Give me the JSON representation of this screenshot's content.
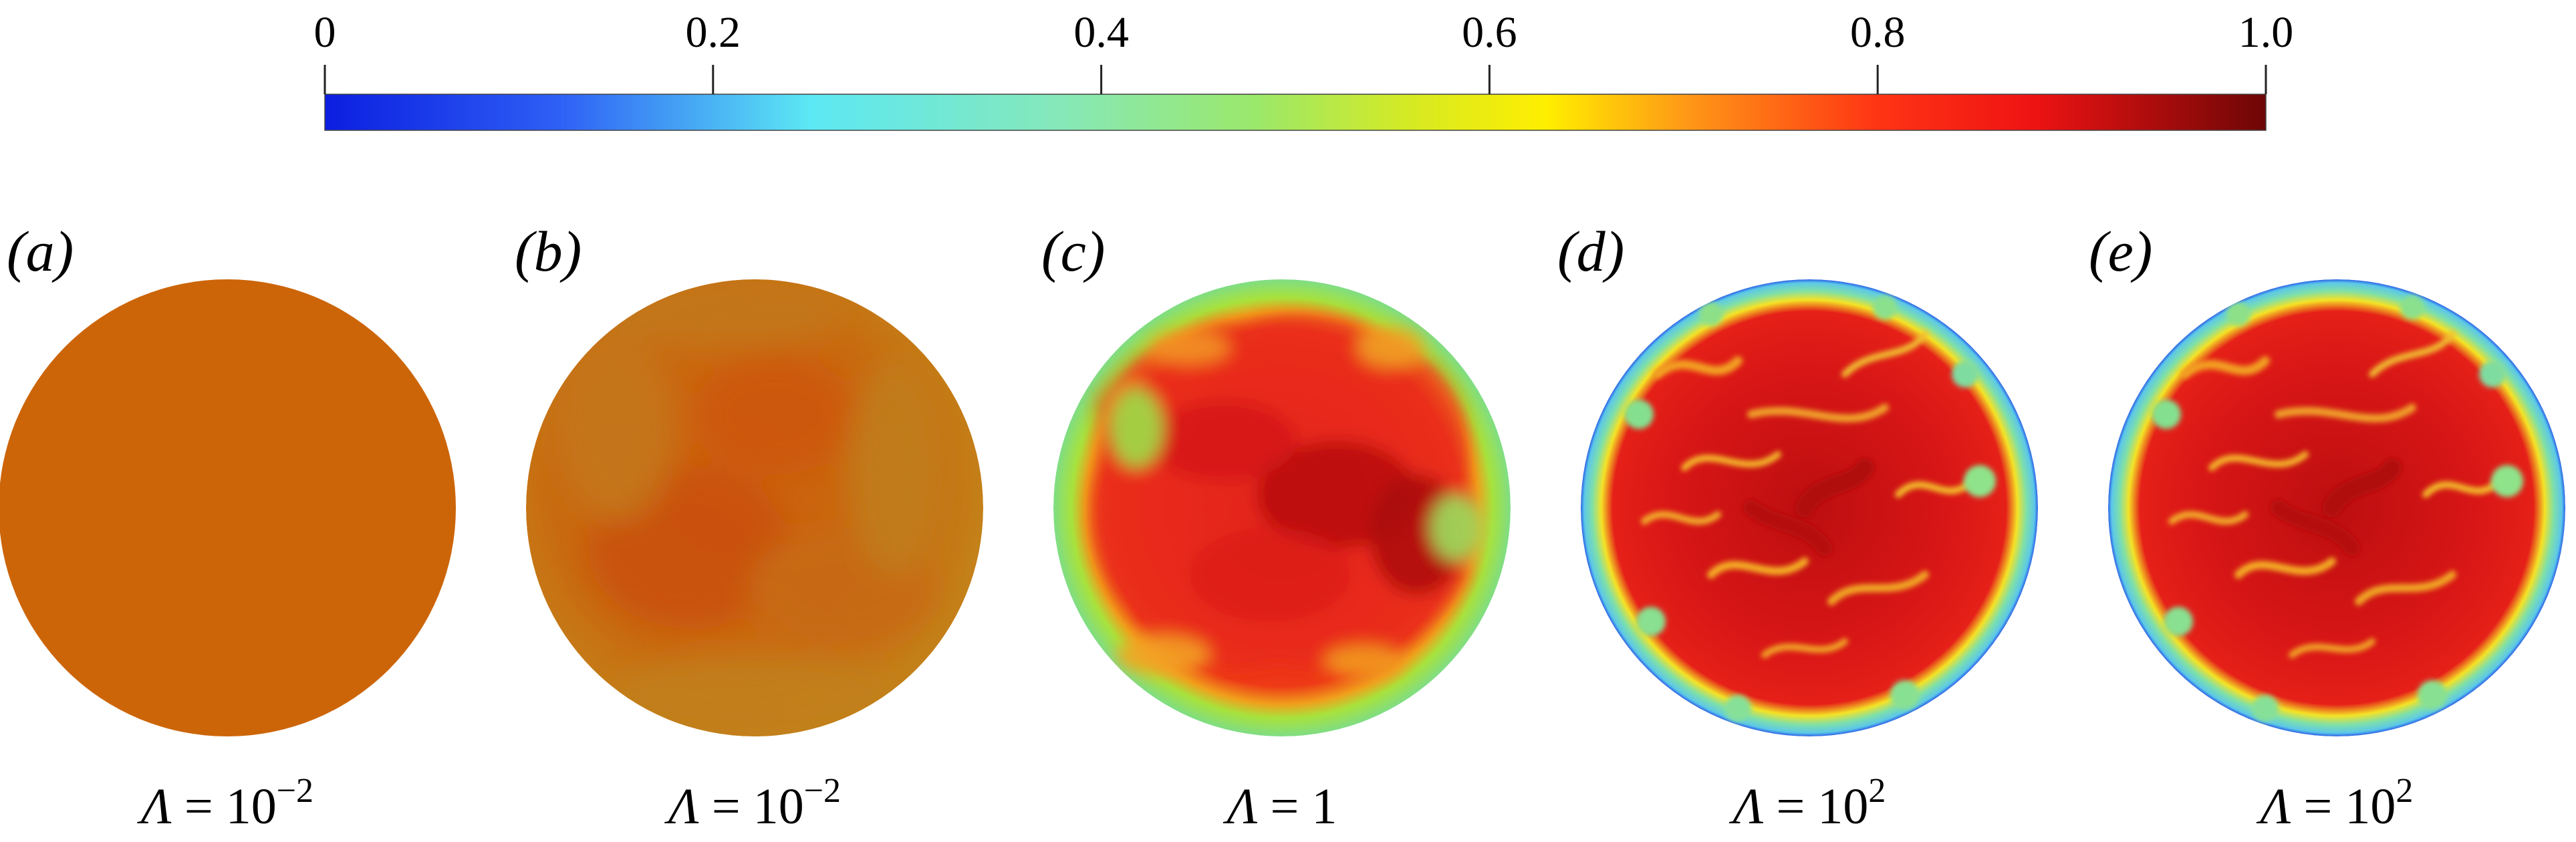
{
  "colorbar": {
    "ticks": [
      {
        "value": 0,
        "label": "0"
      },
      {
        "value": 0.2,
        "label": "0.2"
      },
      {
        "value": 0.4,
        "label": "0.4"
      },
      {
        "value": 0.6,
        "label": "0.6"
      },
      {
        "value": 0.8,
        "label": "0.8"
      },
      {
        "value": 1.0,
        "label": "1.0"
      }
    ],
    "range": [
      0,
      1.0
    ],
    "colormap_stops": [
      {
        "v": 0.0,
        "color": "#0b1ee0"
      },
      {
        "v": 0.12,
        "color": "#2e5ff5"
      },
      {
        "v": 0.25,
        "color": "#5ce8f4"
      },
      {
        "v": 0.38,
        "color": "#86e8b8"
      },
      {
        "v": 0.48,
        "color": "#9be86a"
      },
      {
        "v": 0.56,
        "color": "#d6ea22"
      },
      {
        "v": 0.63,
        "color": "#ffee00"
      },
      {
        "v": 0.7,
        "color": "#ff9a16"
      },
      {
        "v": 0.8,
        "color": "#ff3414"
      },
      {
        "v": 0.88,
        "color": "#ee1313"
      },
      {
        "v": 1.0,
        "color": "#6e0606"
      }
    ]
  },
  "panels": [
    {
      "label": "(a)",
      "caption_symbol": "Λ",
      "caption_rest": " = 10",
      "caption_exp": "−2",
      "fill": "#cc6508",
      "edge": "#cc6508",
      "style": "uniform"
    },
    {
      "label": "(b)",
      "caption_symbol": "Λ",
      "caption_rest": " = 10",
      "caption_exp": "−2",
      "fill": "#c96a10",
      "edge": "#c2801f",
      "style": "mottled"
    },
    {
      "label": "(c)",
      "caption_symbol": "Λ",
      "caption_rest": " = 1",
      "caption_exp": "",
      "fill": "#e6281a",
      "edge": "#86e07e",
      "style": "smooth-turbulent"
    },
    {
      "label": "(d)",
      "caption_symbol": "Λ",
      "caption_rest": " = 10",
      "caption_exp": "2",
      "fill": "#d81616",
      "edge": "#73d8b8",
      "style": "fine-turbulent"
    },
    {
      "label": "(e)",
      "caption_symbol": "Λ",
      "caption_rest": " = 10",
      "caption_exp": "2",
      "fill": "#d81616",
      "edge": "#73d8b8",
      "style": "fine-turbulent"
    }
  ]
}
